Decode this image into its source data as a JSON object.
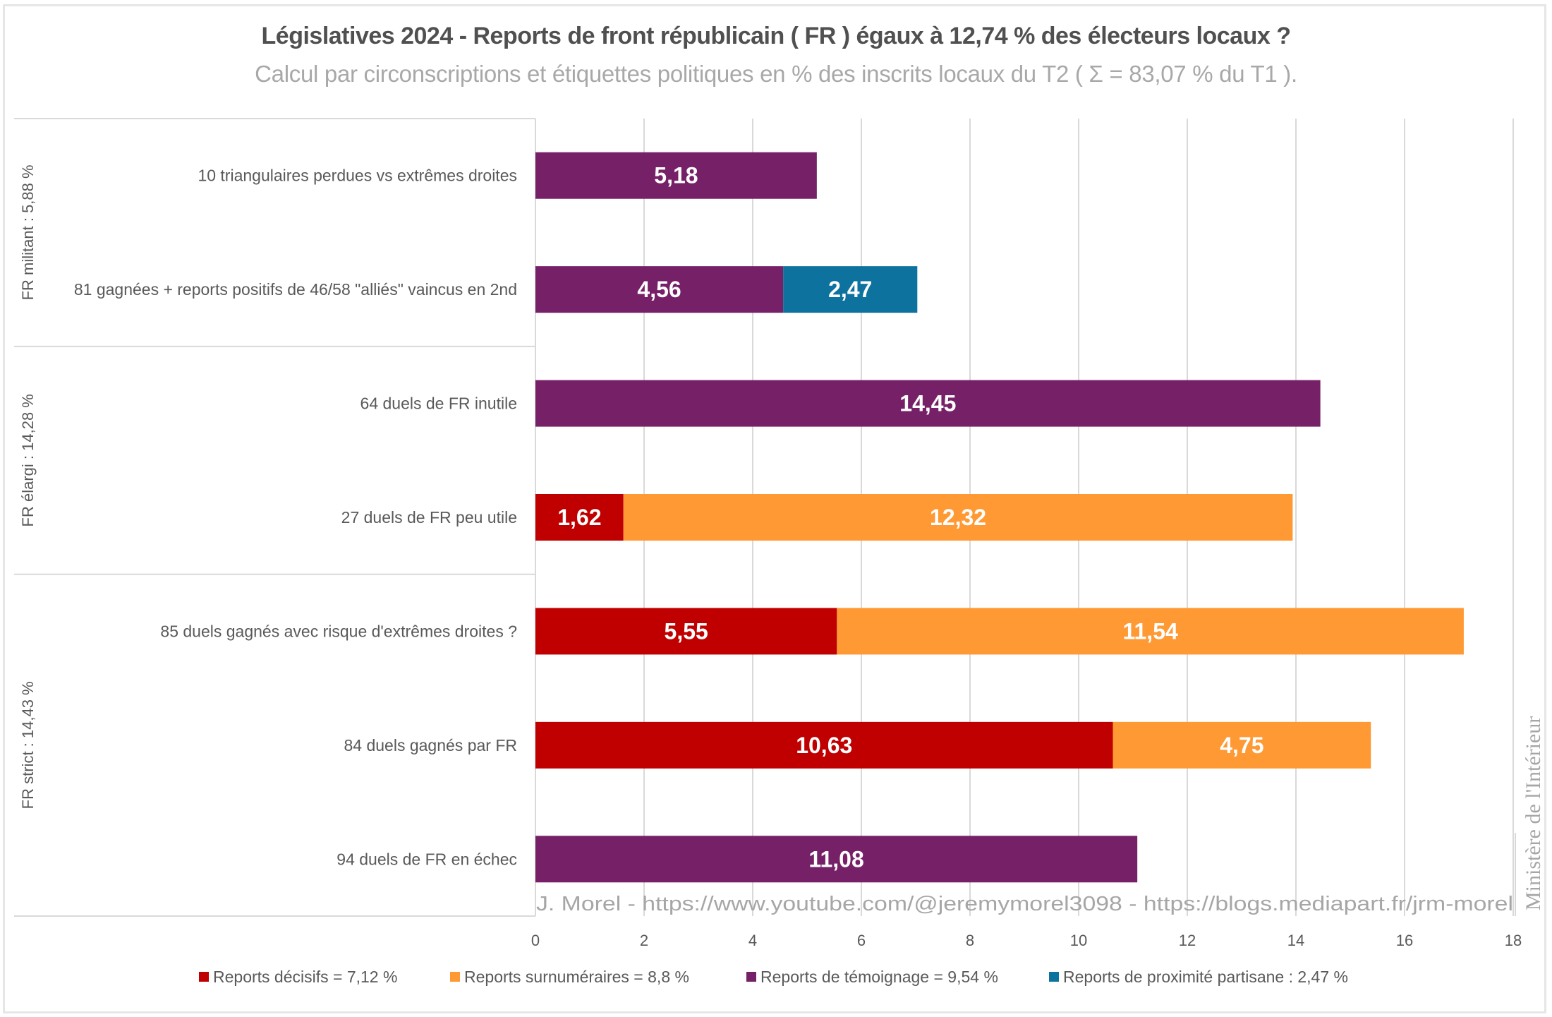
{
  "title": "Législatives 2024 - Reports de front républicain ( FR ) égaux à 12,74 % des électeurs locaux ?",
  "subtitle": "Calcul par circonscriptions et étiquettes politiques en % des inscrits locaux du T2 ( Σ = 83,07 % du T1 ).",
  "watermark": "J. Morel - https://www.youtube.com/@jeremymorel3098 - https://blogs.mediapart.fr/jrm-morel",
  "source": "Ministère de l'Intérieur",
  "chart_data": {
    "type": "bar",
    "orientation": "horizontal",
    "stacked": true,
    "title": "Législatives 2024 - Reports de front républicain ( FR ) égaux à 12,74 % des électeurs locaux ?",
    "subtitle": "Calcul par circonscriptions et étiquettes politiques en % des inscrits locaux du T2 ( Σ = 83,07 % du T1 ).",
    "xlabel": "",
    "ylabel": "",
    "xlim": [
      0,
      18
    ],
    "xticks": [
      0,
      2,
      4,
      6,
      8,
      10,
      12,
      14,
      16,
      18
    ],
    "grid": "vertical",
    "legend_position": "bottom",
    "groups": [
      {
        "label": "FR militant : 5,88 %",
        "categories": [
          0,
          1
        ]
      },
      {
        "label": "FR élargi : 14,28 %",
        "categories": [
          2,
          3
        ]
      },
      {
        "label": "FR strict : 14,43 %",
        "categories": [
          4,
          5,
          6
        ]
      }
    ],
    "categories": [
      "10 triangulaires perdues vs extrêmes droites",
      "81 gagnées + reports positifs de 46/58 \"alliés\" vaincus en 2nd",
      "64 duels de FR inutile",
      "27 duels de FR peu utile",
      "85 duels gagnés avec risque d'extrêmes droites ?",
      "84 duels gagnés par FR",
      "94 duels de FR en échec"
    ],
    "series": [
      {
        "name": "Reports décisifs = 7,12 %",
        "color": "#c00000",
        "values": [
          null,
          null,
          null,
          1.62,
          5.55,
          10.63,
          null
        ]
      },
      {
        "name": "Reports surnuméraires = 8,8 %",
        "color": "#ff9933",
        "values": [
          null,
          null,
          null,
          12.32,
          11.54,
          4.75,
          null
        ]
      },
      {
        "name": "Reports de témoignage = 9,54 %",
        "color": "#762068",
        "values": [
          5.18,
          4.56,
          14.45,
          null,
          null,
          null,
          11.08
        ]
      },
      {
        "name": "Reports de proximité partisane : 2,47 %",
        "color": "#0e729e",
        "values": [
          null,
          2.47,
          null,
          null,
          null,
          null,
          null
        ]
      }
    ],
    "data_labels_format": "comma_decimal_2"
  }
}
